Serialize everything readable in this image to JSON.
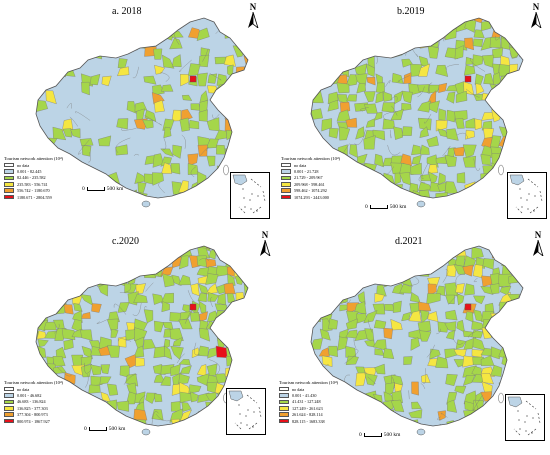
{
  "colors": {
    "no_data": "#ffffff",
    "class1": "#bcd4e6",
    "class2": "#a5d64a",
    "class3": "#f5e642",
    "class4": "#f0a030",
    "class5": "#e8101a",
    "boundary": "#7a7a7a"
  },
  "north_arrow_letter": "N",
  "scale_label": "500 km",
  "scale_zero": "0",
  "legend_title": "Tourism network attention (10⁴)",
  "panels": [
    {
      "title": "a. 2018",
      "legend": [
        "no data",
        "0.001 - 82.445",
        "82.446 - 235.582",
        "235.583 - 556.741",
        "556.742 - 1180.670",
        "1180.671 - 2804.559"
      ],
      "cover": {
        "class2": 0.22,
        "class3": 0.05,
        "class4": 0.03,
        "class5": 0.004
      }
    },
    {
      "title": "b.2019",
      "legend": [
        "no data",
        "0.001 - 21.728",
        "21.729 - 209.967",
        "209.968 - 598.461",
        "598.462 - 1074.292",
        "1074.293 - 2443.000"
      ],
      "cover": {
        "class2": 0.45,
        "class3": 0.06,
        "class4": 0.03,
        "class5": 0.004
      }
    },
    {
      "title": "c.2020",
      "legend": [
        "no data",
        "0.001 - 46.682",
        "46.683 - 136.824",
        "136.825 - 377.303",
        "377.304 - 800.973",
        "800.974 - 1867.927"
      ],
      "cover": {
        "class2": 0.48,
        "class3": 0.07,
        "class4": 0.03,
        "class5": 0.004
      }
    },
    {
      "title": "d.2021",
      "legend": [
        "no data",
        "0.001 - 41.430",
        "41.431 - 127.248",
        "127.249 - 261.623",
        "261.624 - 828.114",
        "828.115 - 1683.338"
      ],
      "cover": {
        "class2": 0.42,
        "class3": 0.07,
        "class4": 0.03,
        "class5": 0.004
      }
    }
  ]
}
